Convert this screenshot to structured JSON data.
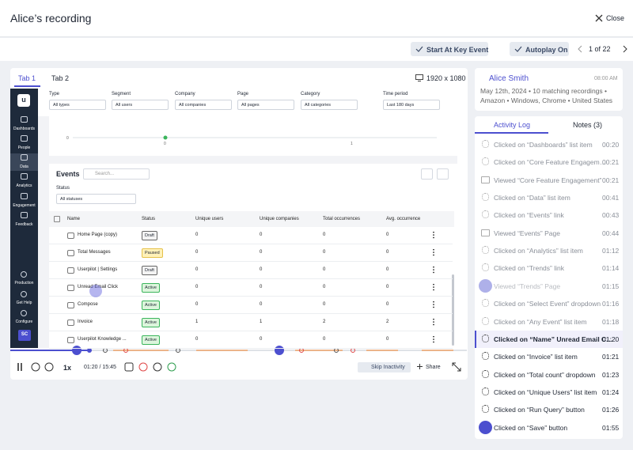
{
  "header": {
    "title": "Alice’s recording",
    "close": "Close"
  },
  "toolbar": {
    "key_event": "Start At Key Event",
    "autoplay": "Autoplay On",
    "pager": "1 of 22"
  },
  "viewer": {
    "tabs": [
      "Tab 1",
      "Tab 2"
    ],
    "resolution": "1920 x 1080"
  },
  "app": {
    "logo": "u",
    "nav": [
      "Dashboards",
      "People",
      "Data",
      "Analytics",
      "Engagement",
      "Feedback"
    ],
    "nav_bottom": [
      "Production",
      "Get Help",
      "Configure"
    ],
    "avatar": "SC",
    "filters": [
      {
        "label": "Type",
        "value": "All types"
      },
      {
        "label": "Segment",
        "value": "All users"
      },
      {
        "label": "Company",
        "value": "All companies"
      },
      {
        "label": "Page",
        "value": "All pages"
      },
      {
        "label": "Category",
        "value": "All categories"
      },
      {
        "label": "Time period",
        "value": "Last 180 days"
      }
    ],
    "chart_labels": [
      0,
      0,
      1
    ],
    "events": {
      "title": "Events",
      "search": "Search...",
      "status_label": "Status",
      "status_value": "All statuses",
      "columns": [
        "Name",
        "Status",
        "Unique users",
        "Unique companies",
        "Total occurrences",
        "Avg. occurrence"
      ],
      "rows": [
        [
          "Home Page (copy)",
          "Draft",
          0,
          0,
          0,
          0
        ],
        [
          "Total Messages",
          "Paused",
          0,
          0,
          0,
          0
        ],
        [
          "Userpilot | Settings",
          "Draft",
          0,
          0,
          0,
          0
        ],
        [
          "Unread Email Click",
          "Active",
          0,
          0,
          0,
          0
        ],
        [
          "Compose",
          "Active",
          0,
          0,
          0,
          0
        ],
        [
          "Invoice",
          "Active",
          1,
          1,
          2,
          2
        ],
        [
          "Userpilot Knowledge ...",
          "Active",
          0,
          0,
          0,
          0
        ]
      ]
    }
  },
  "player": {
    "speed": "1x",
    "time": "01:20 / 15:45",
    "skip": "Skip Inactivity",
    "share": "Share"
  },
  "user": {
    "name": "Alice Smith",
    "time": "08:00 AM",
    "line1": "May 12th, 2024 • 10 matching recordings •",
    "line2": "Amazon • Windows, Chrome • United States"
  },
  "log": {
    "tabs": [
      "Activity Log",
      "Notes (3)"
    ],
    "items": [
      {
        "text": "Clicked on “Dashboards” list item",
        "time": "00:20"
      },
      {
        "text": "Clicked on “Core Feature Engagem…",
        "time": "00:21"
      },
      {
        "text": "Viewed “Core Feature Engagement”",
        "time": "00:21"
      },
      {
        "text": "Clicked on “Data” list item",
        "time": "00:41"
      },
      {
        "text": "Clicked on “Events” link",
        "time": "00:43"
      },
      {
        "text": "Viewed “Events” Page",
        "time": "00:44"
      },
      {
        "text": "Clicked on “Analytics” list item",
        "time": "01:12"
      },
      {
        "text": "Clicked on “Trends” link",
        "time": "01:14"
      },
      {
        "text": "Viewed “Trends” Page",
        "time": "01:15"
      },
      {
        "text": "Clicked on “Select Event” dropdown",
        "time": "01:16"
      },
      {
        "text": "Clicked on “Any Event” list item",
        "time": "01:18"
      },
      {
        "text": "Clicked on “Name”  Unread Email C…",
        "time": "01:20"
      },
      {
        "text": "Clicked on “Invoice” list item",
        "time": "01:21"
      },
      {
        "text": "Clicked on “Total count” dropdown",
        "time": "01:23"
      },
      {
        "text": "Clicked on “Unique Users” list item",
        "time": "01:24"
      },
      {
        "text": "Clicked on “Run Query” button",
        "time": "01:26"
      },
      {
        "text": "Clicked on “Save” button",
        "time": "01:55"
      }
    ]
  }
}
